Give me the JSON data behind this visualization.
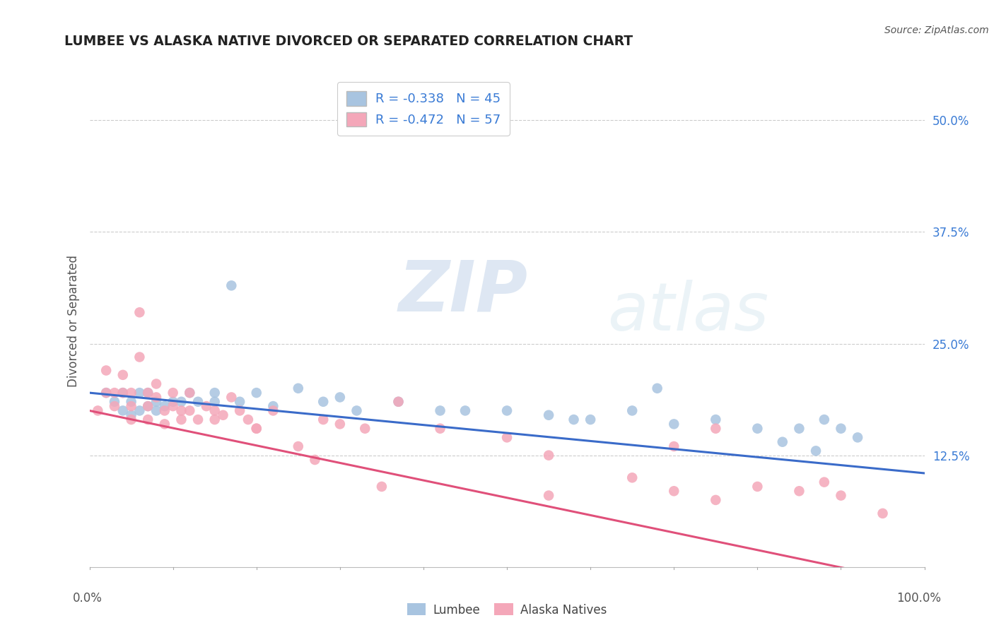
{
  "title": "LUMBEE VS ALASKA NATIVE DIVORCED OR SEPARATED CORRELATION CHART",
  "source": "Source: ZipAtlas.com",
  "ylabel": "Divorced or Separated",
  "watermark_zip": "ZIP",
  "watermark_atlas": "atlas",
  "xlim": [
    0.0,
    1.0
  ],
  "ylim": [
    0.0,
    0.55
  ],
  "yticks": [
    0.125,
    0.25,
    0.375,
    0.5
  ],
  "ytick_labels": [
    "12.5%",
    "25.0%",
    "37.5%",
    "50.0%"
  ],
  "lumbee_R": "-0.338",
  "lumbee_N": "45",
  "alaska_R": "-0.472",
  "alaska_N": "57",
  "lumbee_color": "#a8c4e0",
  "alaska_color": "#f4a7b9",
  "lumbee_line_color": "#3a6bc9",
  "alaska_line_color": "#e0507a",
  "lumbee_line_start_y": 0.195,
  "lumbee_line_end_y": 0.105,
  "alaska_line_start_y": 0.175,
  "alaska_line_end_y": -0.02,
  "lumbee_scatter_x": [
    0.02,
    0.03,
    0.04,
    0.04,
    0.05,
    0.05,
    0.06,
    0.06,
    0.07,
    0.07,
    0.08,
    0.08,
    0.09,
    0.1,
    0.11,
    0.12,
    0.13,
    0.15,
    0.17,
    0.2,
    0.22,
    0.25,
    0.28,
    0.32,
    0.37,
    0.42,
    0.5,
    0.55,
    0.6,
    0.65,
    0.7,
    0.75,
    0.8,
    0.85,
    0.88,
    0.9,
    0.92,
    0.83,
    0.87,
    0.15,
    0.18,
    0.3,
    0.45,
    0.58,
    0.68
  ],
  "lumbee_scatter_y": [
    0.195,
    0.185,
    0.195,
    0.175,
    0.185,
    0.17,
    0.195,
    0.175,
    0.195,
    0.18,
    0.185,
    0.175,
    0.18,
    0.185,
    0.185,
    0.195,
    0.185,
    0.195,
    0.315,
    0.195,
    0.18,
    0.2,
    0.185,
    0.175,
    0.185,
    0.175,
    0.175,
    0.17,
    0.165,
    0.175,
    0.16,
    0.165,
    0.155,
    0.155,
    0.165,
    0.155,
    0.145,
    0.14,
    0.13,
    0.185,
    0.185,
    0.19,
    0.175,
    0.165,
    0.2
  ],
  "alaska_scatter_x": [
    0.01,
    0.02,
    0.02,
    0.03,
    0.03,
    0.04,
    0.04,
    0.05,
    0.05,
    0.05,
    0.06,
    0.06,
    0.07,
    0.07,
    0.07,
    0.08,
    0.08,
    0.09,
    0.09,
    0.1,
    0.1,
    0.11,
    0.11,
    0.12,
    0.12,
    0.13,
    0.14,
    0.15,
    0.16,
    0.17,
    0.18,
    0.19,
    0.2,
    0.22,
    0.25,
    0.28,
    0.3,
    0.33,
    0.37,
    0.42,
    0.15,
    0.2,
    0.27,
    0.35,
    0.5,
    0.55,
    0.65,
    0.7,
    0.75,
    0.8,
    0.85,
    0.88,
    0.9,
    0.55,
    0.7,
    0.75,
    0.95
  ],
  "alaska_scatter_y": [
    0.175,
    0.22,
    0.195,
    0.195,
    0.18,
    0.215,
    0.195,
    0.195,
    0.18,
    0.165,
    0.285,
    0.235,
    0.195,
    0.18,
    0.165,
    0.205,
    0.19,
    0.175,
    0.16,
    0.195,
    0.18,
    0.175,
    0.165,
    0.195,
    0.175,
    0.165,
    0.18,
    0.175,
    0.17,
    0.19,
    0.175,
    0.165,
    0.155,
    0.175,
    0.135,
    0.165,
    0.16,
    0.155,
    0.185,
    0.155,
    0.165,
    0.155,
    0.12,
    0.09,
    0.145,
    0.125,
    0.1,
    0.135,
    0.155,
    0.09,
    0.085,
    0.095,
    0.08,
    0.08,
    0.085,
    0.075,
    0.06
  ]
}
